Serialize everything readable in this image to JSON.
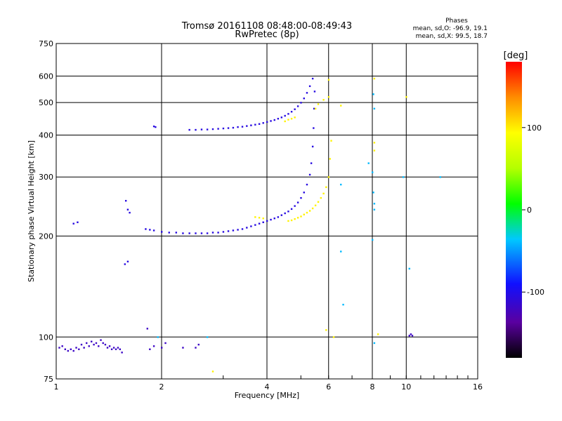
{
  "chart_data": {
    "type": "scatter",
    "title": "Tromsø 20161108 08:48:00-08:49:43",
    "subtitle": "RwPretec (8p)",
    "xlabel": "Frequency [MHz]",
    "ylabel": "Stationary phase Virtual Height [km]",
    "x_scale": "log",
    "y_scale": "log",
    "xlim": [
      1,
      16
    ],
    "ylim": [
      75,
      750
    ],
    "x_ticks": [
      1,
      2,
      4,
      6,
      8,
      10,
      16
    ],
    "y_ticks": [
      75,
      100,
      200,
      300,
      400,
      500,
      600,
      750
    ],
    "grid": true,
    "phase_box": {
      "heading": "Phases",
      "line_o": "mean, sd,O: -96.9, 19.1",
      "line_x": "mean, sd,X:  99.5, 18.7"
    },
    "colorbar": {
      "label": "[deg]",
      "range": [
        -180,
        180
      ],
      "ticks": [
        100,
        0,
        -100
      ]
    },
    "series": [
      {
        "key": "o_trace",
        "phase": -105,
        "points": [
          [
            1.8,
            210
          ],
          [
            1.85,
            209
          ],
          [
            1.9,
            208
          ],
          [
            2.0,
            206
          ],
          [
            2.1,
            205
          ],
          [
            2.2,
            205
          ],
          [
            2.3,
            204
          ],
          [
            2.4,
            204
          ],
          [
            2.5,
            204
          ],
          [
            2.6,
            204
          ],
          [
            2.7,
            204
          ],
          [
            2.8,
            205
          ],
          [
            2.9,
            205
          ],
          [
            3.0,
            206
          ],
          [
            3.1,
            207
          ],
          [
            3.2,
            208
          ],
          [
            3.3,
            209
          ],
          [
            3.4,
            210
          ],
          [
            3.5,
            212
          ],
          [
            3.6,
            214
          ],
          [
            3.7,
            216
          ],
          [
            3.8,
            218
          ],
          [
            3.9,
            220
          ],
          [
            4.0,
            222
          ],
          [
            4.1,
            224
          ],
          [
            4.2,
            226
          ],
          [
            4.3,
            228
          ],
          [
            4.4,
            231
          ],
          [
            4.5,
            234
          ],
          [
            4.6,
            237
          ],
          [
            4.7,
            241
          ],
          [
            4.8,
            246
          ],
          [
            4.9,
            252
          ],
          [
            5.0,
            260
          ],
          [
            5.1,
            270
          ],
          [
            5.2,
            285
          ],
          [
            5.3,
            305
          ],
          [
            5.35,
            330
          ],
          [
            5.4,
            370
          ],
          [
            5.43,
            420
          ],
          [
            5.45,
            480
          ],
          [
            5.47,
            540
          ],
          [
            2.4,
            415
          ],
          [
            2.5,
            415
          ],
          [
            2.6,
            416
          ],
          [
            2.7,
            416
          ],
          [
            2.8,
            417
          ],
          [
            2.9,
            418
          ],
          [
            3.0,
            419
          ],
          [
            3.1,
            420
          ],
          [
            3.2,
            421
          ],
          [
            3.3,
            423
          ],
          [
            3.4,
            424
          ],
          [
            3.5,
            426
          ],
          [
            3.6,
            428
          ],
          [
            3.7,
            430
          ],
          [
            3.8,
            432
          ],
          [
            3.9,
            435
          ],
          [
            4.0,
            438
          ],
          [
            4.1,
            441
          ],
          [
            4.2,
            444
          ],
          [
            4.3,
            448
          ],
          [
            4.4,
            452
          ],
          [
            4.5,
            457
          ],
          [
            4.6,
            463
          ],
          [
            4.7,
            470
          ],
          [
            4.8,
            478
          ],
          [
            4.9,
            488
          ],
          [
            5.0,
            500
          ],
          [
            5.1,
            515
          ],
          [
            5.2,
            535
          ],
          [
            5.3,
            560
          ],
          [
            5.4,
            590
          ],
          [
            1.9,
            425
          ],
          [
            1.92,
            423
          ],
          [
            1.12,
            218
          ],
          [
            1.15,
            220
          ],
          [
            1.58,
            255
          ],
          [
            1.6,
            240
          ],
          [
            1.62,
            235
          ],
          [
            1.57,
            165
          ],
          [
            1.6,
            168
          ]
        ]
      },
      {
        "key": "x_trace",
        "phase": 98,
        "points": [
          [
            3.7,
            228
          ],
          [
            3.8,
            227
          ],
          [
            3.9,
            226
          ],
          [
            4.6,
            222
          ],
          [
            4.7,
            223
          ],
          [
            4.8,
            225
          ],
          [
            4.9,
            227
          ],
          [
            5.0,
            229
          ],
          [
            5.1,
            232
          ],
          [
            5.2,
            235
          ],
          [
            5.3,
            238
          ],
          [
            5.4,
            242
          ],
          [
            5.5,
            247
          ],
          [
            5.6,
            253
          ],
          [
            5.7,
            260
          ],
          [
            5.8,
            268
          ],
          [
            5.9,
            280
          ],
          [
            6.0,
            300
          ],
          [
            6.05,
            340
          ],
          [
            6.1,
            385
          ],
          [
            4.5,
            440
          ],
          [
            4.6,
            445
          ],
          [
            4.7,
            448
          ],
          [
            4.8,
            452
          ],
          [
            5.5,
            480
          ],
          [
            5.6,
            495
          ],
          [
            5.8,
            510
          ],
          [
            6.0,
            520
          ],
          [
            6.0,
            585
          ],
          [
            6.5,
            490
          ],
          [
            8.1,
            590
          ],
          [
            8.1,
            380
          ],
          [
            8.1,
            360
          ],
          [
            10.0,
            520
          ],
          [
            6.2,
            100
          ],
          [
            5.9,
            105
          ],
          [
            2.8,
            79
          ],
          [
            8.3,
            102
          ]
        ]
      },
      {
        "key": "low_echoes",
        "phase": -118,
        "points": [
          [
            1.02,
            93
          ],
          [
            1.04,
            94
          ],
          [
            1.06,
            92
          ],
          [
            1.08,
            91
          ],
          [
            1.1,
            92
          ],
          [
            1.12,
            91
          ],
          [
            1.14,
            93
          ],
          [
            1.16,
            92
          ],
          [
            1.18,
            95
          ],
          [
            1.2,
            93
          ],
          [
            1.22,
            96
          ],
          [
            1.24,
            94
          ],
          [
            1.26,
            97
          ],
          [
            1.28,
            95
          ],
          [
            1.3,
            96
          ],
          [
            1.32,
            94
          ],
          [
            1.34,
            98
          ],
          [
            1.36,
            96
          ],
          [
            1.38,
            95
          ],
          [
            1.4,
            93
          ],
          [
            1.42,
            94
          ],
          [
            1.44,
            92
          ],
          [
            1.46,
            93
          ],
          [
            1.48,
            92
          ],
          [
            1.5,
            93
          ],
          [
            1.52,
            92
          ],
          [
            1.54,
            90
          ],
          [
            1.85,
            92
          ],
          [
            1.9,
            94
          ],
          [
            2.0,
            93
          ],
          [
            2.05,
            96
          ],
          [
            2.3,
            93
          ],
          [
            2.5,
            93
          ],
          [
            2.55,
            95
          ],
          [
            1.82,
            106
          ],
          [
            10.2,
            101
          ],
          [
            10.3,
            102
          ],
          [
            10.4,
            101
          ]
        ]
      },
      {
        "key": "scattered",
        "phase": -40,
        "points": [
          [
            6.5,
            285
          ],
          [
            6.5,
            180
          ],
          [
            6.6,
            125
          ],
          [
            8.0,
            310
          ],
          [
            8.05,
            270
          ],
          [
            8.1,
            250
          ],
          [
            8.1,
            240
          ],
          [
            8.05,
            530
          ],
          [
            8.1,
            480
          ],
          [
            7.8,
            330
          ],
          [
            9.8,
            300
          ],
          [
            10.2,
            160
          ],
          [
            12.5,
            300
          ],
          [
            8.0,
            195
          ],
          [
            8.1,
            96
          ],
          [
            1.95,
            100
          ],
          [
            2.7,
            100
          ]
        ]
      }
    ]
  }
}
